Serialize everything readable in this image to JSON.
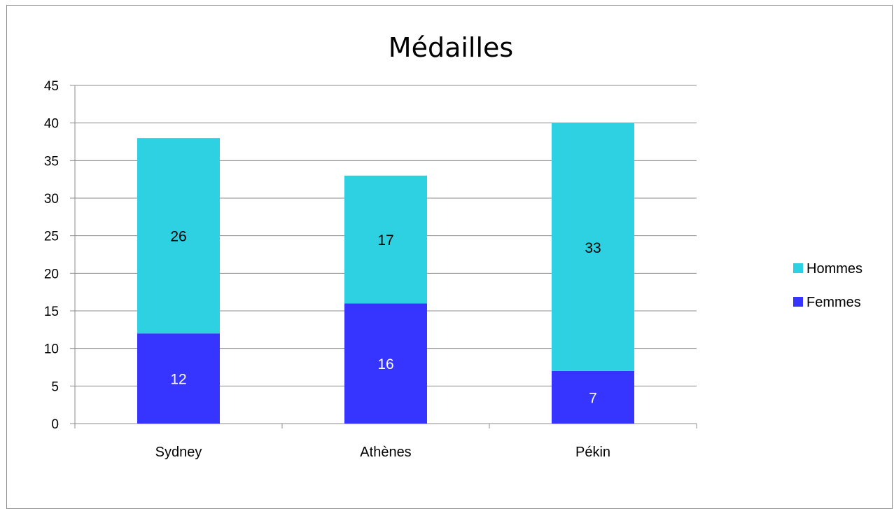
{
  "chart_data": {
    "type": "bar",
    "stacked": true,
    "title": "Médailles",
    "categories": [
      "Sydney",
      "Athènes",
      "Pékin"
    ],
    "series": [
      {
        "name": "Femmes",
        "values": [
          12,
          16,
          7
        ],
        "color": "#3535ff",
        "label_color": "#ffffff"
      },
      {
        "name": "Hommes",
        "values": [
          26,
          17,
          33
        ],
        "color": "#2dd1e2",
        "label_color": "#000000"
      }
    ],
    "ylim": [
      0,
      45
    ],
    "yticks": [
      0,
      5,
      10,
      15,
      20,
      25,
      30,
      35,
      40,
      45
    ],
    "grid": true,
    "legend": "right",
    "xlabel": "",
    "ylabel": ""
  }
}
